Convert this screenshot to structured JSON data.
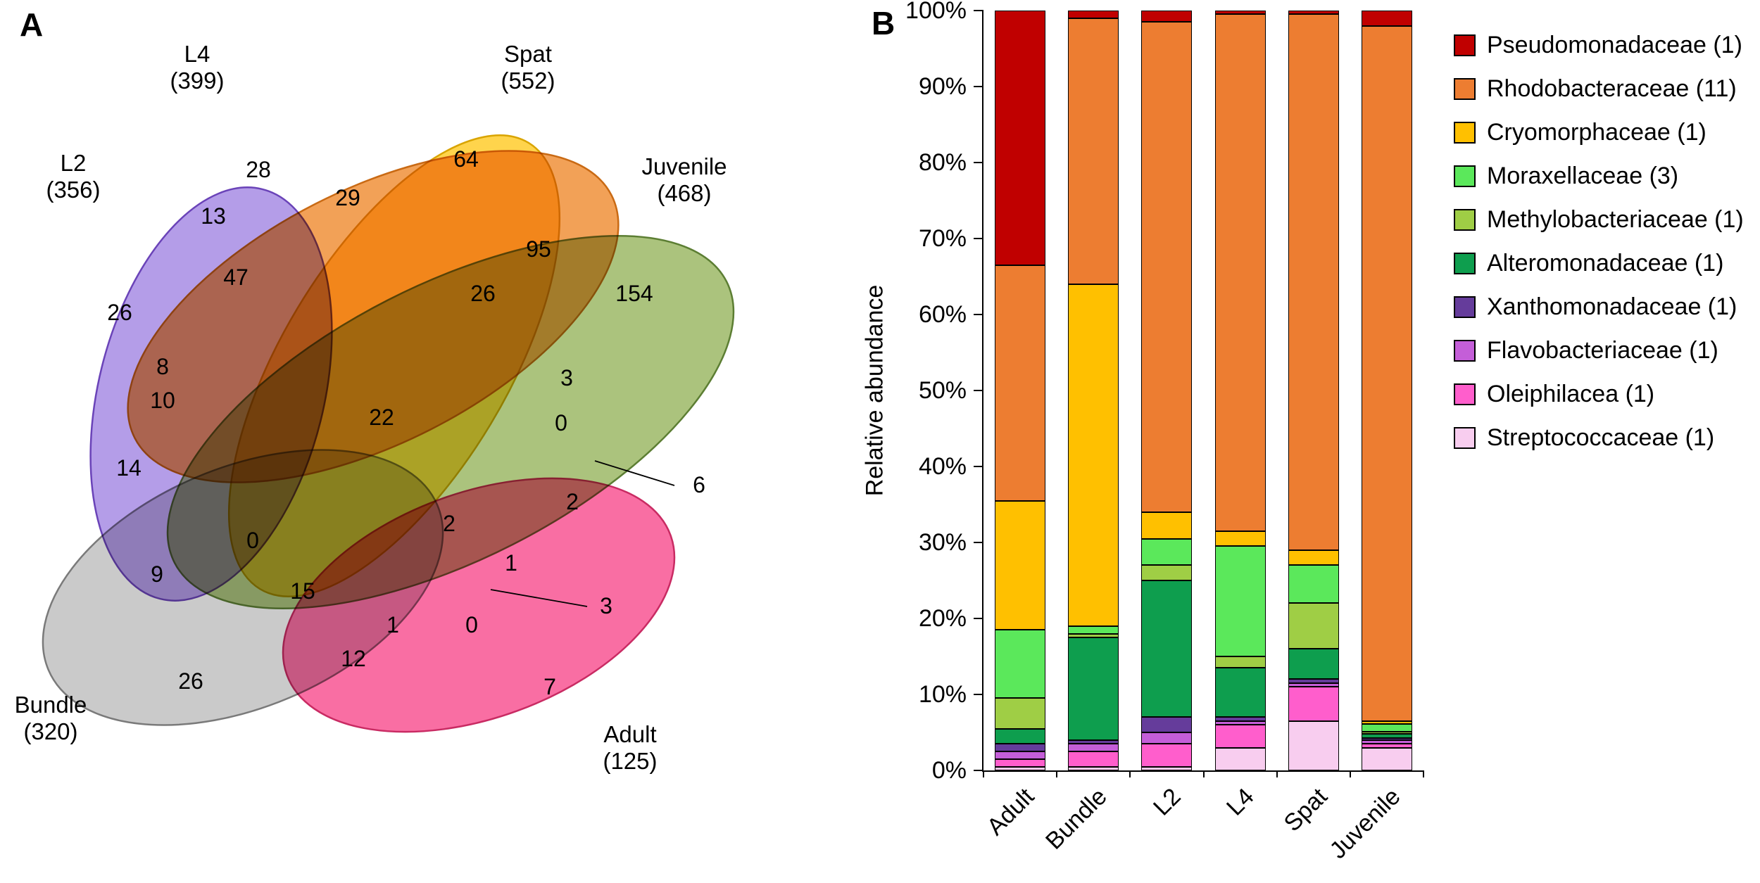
{
  "figure": {
    "panel_a_label": "A",
    "panel_b_label": "B"
  },
  "venn": {
    "sets": [
      {
        "name": "L2",
        "count_label": "(356)",
        "fill": "#9b7ce0",
        "stroke": "#6a43b8",
        "opacity": 0.75
      },
      {
        "name": "L4",
        "count_label": "(399)",
        "fill": "#ffc91f",
        "stroke": "#d9a400",
        "opacity": 0.8
      },
      {
        "name": "Spat",
        "count_label": "(552)",
        "fill": "#f0913a",
        "stroke": "#c96a14",
        "opacity": 0.85
      },
      {
        "name": "Juvenile",
        "count_label": "(468)",
        "fill": "#8faf52",
        "stroke": "#5c7e33",
        "opacity": 0.75
      },
      {
        "name": "Bundle",
        "count_label": "(320)",
        "fill": "#f74a8c",
        "stroke": "#c92b63",
        "opacity": 0.8
      },
      {
        "name": "Adult",
        "count_label": "(125)",
        "fill": "#b3b3b3",
        "stroke": "#7a7a7a",
        "opacity": 0.7
      }
    ],
    "region_values": [
      "28",
      "64",
      "29",
      "13",
      "47",
      "95",
      "26",
      "26",
      "154",
      "8",
      "10",
      "22",
      "3",
      "0",
      "6",
      "14",
      "0",
      "2",
      "2",
      "1",
      "9",
      "15",
      "3",
      "1",
      "0",
      "26",
      "12",
      "7"
    ]
  },
  "chart_data": {
    "type": "bar",
    "subtype": "stacked-percent",
    "title": "",
    "ylabel": "Relative abundance",
    "ylim": [
      0,
      100
    ],
    "yticks": [
      "0%",
      "10%",
      "20%",
      "30%",
      "40%",
      "50%",
      "60%",
      "70%",
      "80%",
      "90%",
      "100%"
    ],
    "grid": false,
    "legend_position": "right",
    "categories": [
      "Adult",
      "Bundle",
      "L2",
      "L4",
      "Spat",
      "Juvenile"
    ],
    "series": [
      {
        "label": "Pseudomonadaceae (1)",
        "color": "#c00000",
        "values": [
          33.5,
          1,
          1.5,
          0.5,
          0.5,
          2
        ]
      },
      {
        "label": "Rhodobacteraceae (11)",
        "color": "#ed7d31",
        "values": [
          31,
          35,
          64.5,
          68,
          70.5,
          91.5
        ]
      },
      {
        "label": "Cryomorphaceae (1)",
        "color": "#ffc000",
        "values": [
          17,
          45,
          3.5,
          2,
          2,
          0.4
        ]
      },
      {
        "label": "Moraxellaceae (3)",
        "color": "#5be85b",
        "values": [
          9,
          1,
          3.5,
          14.5,
          5,
          1
        ]
      },
      {
        "label": "Methylobacteriaceae (1)",
        "color": "#9fce45",
        "values": [
          4,
          0.5,
          2,
          1.5,
          6,
          0.3
        ]
      },
      {
        "label": "Alteromonadaceae (1)",
        "color": "#0e9e4e",
        "values": [
          2,
          13.5,
          18,
          6.5,
          4,
          0.5
        ]
      },
      {
        "label": "Xanthomonadaceae (1)",
        "color": "#653c9b",
        "values": [
          1,
          0.5,
          2,
          0.5,
          0.5,
          0.3
        ]
      },
      {
        "label": "Flavobacteriaceae (1)",
        "color": "#c45ed8",
        "values": [
          1,
          1,
          1.5,
          0.5,
          0.5,
          0.5
        ]
      },
      {
        "label": "Oleiphilacea (1)",
        "color": "#ff5ecc",
        "values": [
          1,
          2,
          3,
          3,
          4.5,
          0.5
        ]
      },
      {
        "label": "Streptococcaceae (1)",
        "color": "#f8cdef",
        "values": [
          0.5,
          0.5,
          0.5,
          3,
          6.5,
          3
        ]
      }
    ]
  }
}
